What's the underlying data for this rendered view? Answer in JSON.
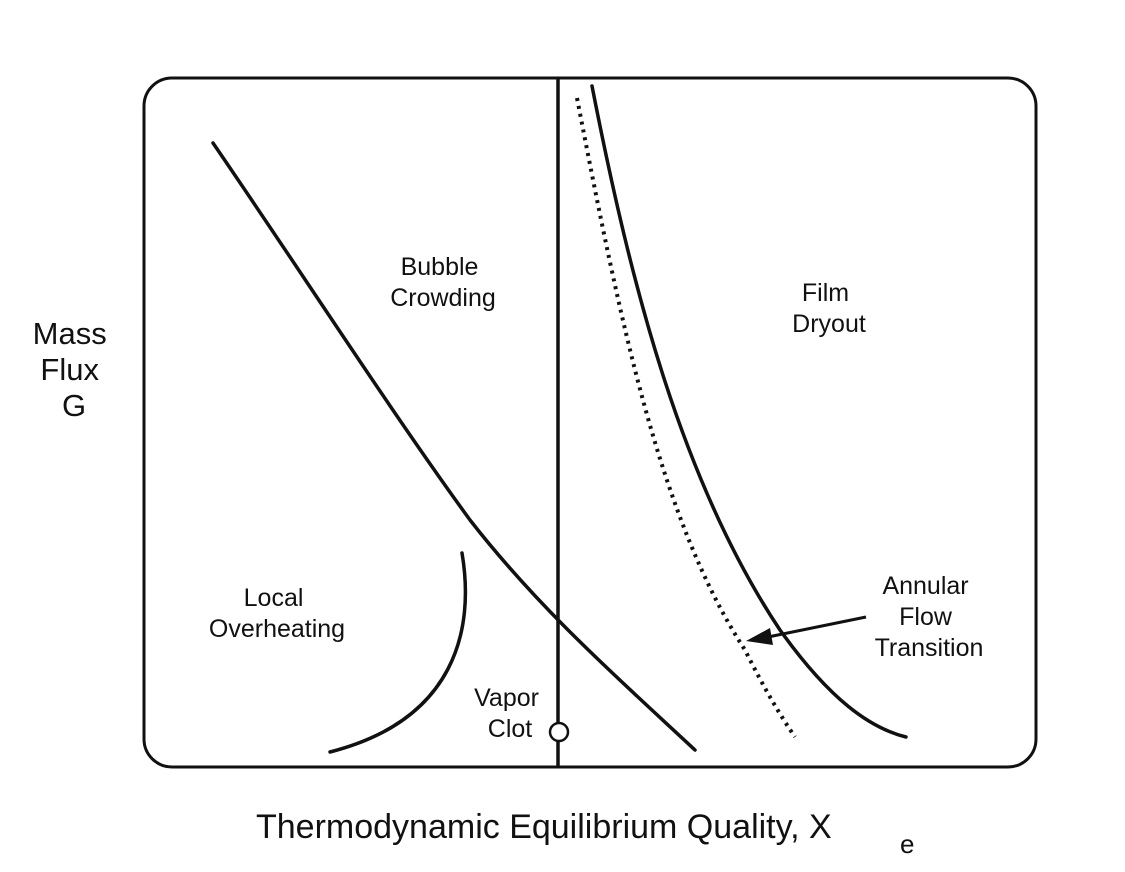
{
  "y_axis_label": [
    "Mass",
    "Flux",
    "G"
  ],
  "x_axis_label": "Thermodynamic Equilibrium Quality, X",
  "x_axis_subscript": "e",
  "regions": {
    "bubble_crowding": [
      "Bubble",
      "Crowding"
    ],
    "film_dryout": [
      "Film",
      "Dryout"
    ],
    "local_overheating": [
      "Local",
      "Overheating"
    ],
    "vapor_clot": [
      "Vapor",
      "Clot"
    ],
    "annular_flow_transition": [
      "Annular",
      "Flow",
      "Transition"
    ]
  },
  "colors": {
    "ink": "#111111",
    "background": "#ffffff"
  }
}
